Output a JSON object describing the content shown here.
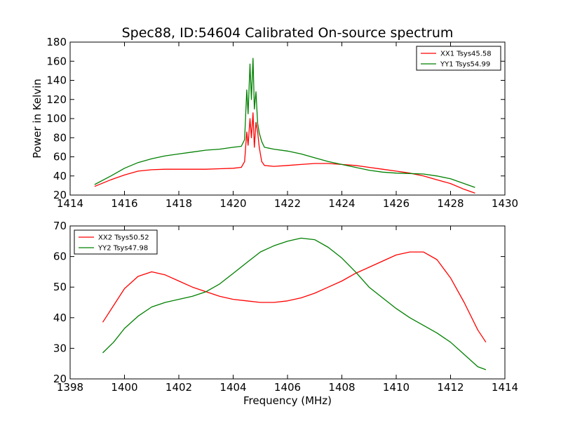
{
  "figure": {
    "title": "Spec88, ID:54604 Calibrated On-source spectrum"
  },
  "chart_data": [
    {
      "type": "line",
      "title": "Spec88, ID:54604 Calibrated On-source spectrum",
      "xlabel": "",
      "ylabel": "Power in Kelvin",
      "xlim": [
        1414,
        1430
      ],
      "ylim": [
        20,
        180
      ],
      "xticks": [
        "1414",
        "1416",
        "1418",
        "1420",
        "1422",
        "1424",
        "1426",
        "1428",
        "1430"
      ],
      "yticks": [
        "20",
        "40",
        "60",
        "80",
        "100",
        "120",
        "140",
        "160",
        "180"
      ],
      "legend_position": "top-right",
      "grid": false,
      "series": [
        {
          "name": "XX1 Tsys45.58",
          "color": "#ff0000",
          "x": [
            1414.9,
            1415.5,
            1416.0,
            1416.5,
            1417.0,
            1417.5,
            1418.0,
            1418.5,
            1419.0,
            1419.5,
            1420.0,
            1420.3,
            1420.42,
            1420.5,
            1420.55,
            1420.62,
            1420.67,
            1420.73,
            1420.78,
            1420.84,
            1420.9,
            1420.96,
            1421.05,
            1421.15,
            1421.5,
            1422.0,
            1422.5,
            1423.0,
            1423.5,
            1424.0,
            1424.5,
            1425.0,
            1425.5,
            1426.0,
            1426.5,
            1427.0,
            1427.5,
            1428.0,
            1428.5,
            1428.9
          ],
          "values": [
            29,
            36,
            41,
            45,
            46.5,
            47,
            47,
            47,
            47,
            47.5,
            48,
            49,
            55,
            86,
            72,
            100,
            80,
            106,
            70,
            96,
            86,
            70,
            55,
            51,
            50,
            51,
            52,
            53,
            53,
            52,
            51,
            49,
            47,
            45,
            43,
            40,
            36,
            32,
            26,
            22
          ]
        },
        {
          "name": "YY1 Tsys54.99",
          "color": "#008000",
          "x": [
            1414.9,
            1415.5,
            1416.0,
            1416.5,
            1417.0,
            1417.5,
            1418.0,
            1418.5,
            1419.0,
            1419.5,
            1420.0,
            1420.3,
            1420.42,
            1420.5,
            1420.55,
            1420.62,
            1420.67,
            1420.73,
            1420.78,
            1420.84,
            1420.9,
            1420.96,
            1421.05,
            1421.15,
            1421.5,
            1422.0,
            1422.5,
            1423.0,
            1423.5,
            1424.0,
            1424.5,
            1425.0,
            1425.5,
            1426.0,
            1426.5,
            1427.0,
            1427.5,
            1428.0,
            1428.5,
            1428.9
          ],
          "values": [
            31,
            40,
            48,
            54,
            58,
            61,
            63,
            65,
            67,
            68,
            70,
            71,
            78,
            130,
            105,
            157,
            120,
            163,
            110,
            128,
            95,
            85,
            76,
            70,
            68,
            66,
            63,
            59,
            55,
            52,
            49,
            46,
            44,
            43,
            42.5,
            42,
            40,
            37,
            32,
            28
          ]
        }
      ]
    },
    {
      "type": "line",
      "title": "",
      "xlabel": "Frequency (MHz)",
      "ylabel": "",
      "xlim": [
        1398,
        1414
      ],
      "ylim": [
        20,
        70
      ],
      "xticks": [
        "1398",
        "1400",
        "1402",
        "1404",
        "1406",
        "1408",
        "1410",
        "1412",
        "1414"
      ],
      "yticks": [
        "20",
        "30",
        "40",
        "50",
        "60",
        "70"
      ],
      "legend_position": "top-left",
      "grid": false,
      "series": [
        {
          "name": "XX2 Tsys50.52",
          "color": "#ff0000",
          "x": [
            1399.2,
            1399.6,
            1400.0,
            1400.5,
            1401.0,
            1401.5,
            1402.0,
            1402.5,
            1403.0,
            1403.5,
            1404.0,
            1404.5,
            1405.0,
            1405.5,
            1406.0,
            1406.5,
            1407.0,
            1407.5,
            1408.0,
            1408.5,
            1409.0,
            1409.5,
            1410.0,
            1410.5,
            1411.0,
            1411.5,
            1412.0,
            1412.5,
            1413.0,
            1413.3
          ],
          "values": [
            38.5,
            44,
            49.5,
            53.5,
            55,
            54,
            52,
            50,
            48.5,
            47,
            46,
            45.5,
            45,
            45,
            45.5,
            46.5,
            48,
            50,
            52,
            54.5,
            56.5,
            58.5,
            60.5,
            61.5,
            61.5,
            59,
            53,
            45,
            36,
            32
          ]
        },
        {
          "name": "YY2 Tsys47.98",
          "color": "#008000",
          "x": [
            1399.2,
            1399.6,
            1400.0,
            1400.5,
            1401.0,
            1401.5,
            1402.0,
            1402.5,
            1403.0,
            1403.5,
            1404.0,
            1404.5,
            1405.0,
            1405.5,
            1406.0,
            1406.5,
            1407.0,
            1407.5,
            1408.0,
            1408.5,
            1409.0,
            1409.5,
            1410.0,
            1410.5,
            1411.0,
            1411.5,
            1412.0,
            1412.5,
            1413.0,
            1413.3
          ],
          "values": [
            28.5,
            32,
            36.5,
            40.5,
            43.5,
            45,
            46,
            47,
            48.5,
            51,
            54.5,
            58,
            61.5,
            63.5,
            65,
            66,
            65.5,
            63,
            59.5,
            55,
            50,
            46.5,
            43,
            40,
            37.5,
            35,
            32,
            28,
            24,
            23
          ]
        }
      ]
    }
  ]
}
